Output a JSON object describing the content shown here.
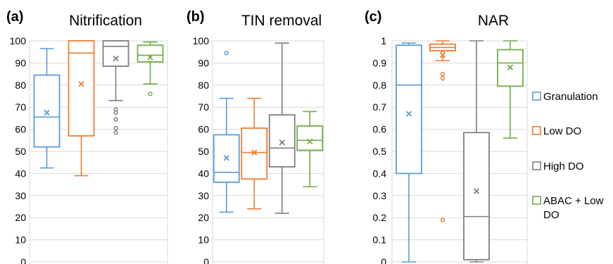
{
  "legend": [
    {
      "label_lines": [
        "Granulation"
      ],
      "color": "#5B9BD5"
    },
    {
      "label_lines": [
        "Low DO"
      ],
      "color": "#ED7D31"
    },
    {
      "label_lines": [
        "High DO"
      ],
      "color": "#7F7F7F"
    },
    {
      "label_lines": [
        "ABAC + Low",
        "DO"
      ],
      "color": "#70AD47"
    }
  ],
  "chart_data": [
    {
      "type": "box",
      "panel": "(a)",
      "title": "Nitrification",
      "ylim": [
        0,
        100
      ],
      "yticks": [
        "0",
        "10",
        "20",
        "30",
        "40",
        "50",
        "60",
        "70",
        "80",
        "90",
        "100"
      ],
      "series": [
        {
          "name": "Granulation",
          "color": "#5B9BD5",
          "min": 42.5,
          "q1": 52,
          "median": 65.5,
          "q3": 84.5,
          "max": 96.5,
          "mean": 67.5,
          "outliers": []
        },
        {
          "name": "Low DO",
          "color": "#ED7D31",
          "min": 39,
          "q1": 57,
          "median": 94.5,
          "q3": 100,
          "max": 100,
          "mean": 80.5,
          "outliers": []
        },
        {
          "name": "High DO",
          "color": "#7F7F7F",
          "min": 73,
          "q1": 88.5,
          "median": 97.5,
          "q3": 100,
          "max": 100,
          "mean": 92,
          "outliers": [
            69,
            67.5,
            64.5,
            60.5,
            58.5
          ]
        },
        {
          "name": "ABAC + Low DO",
          "color": "#70AD47",
          "min": 80.5,
          "q1": 90.5,
          "median": 93.5,
          "q3": 98,
          "max": 99.5,
          "mean": 92.5,
          "outliers": [
            76
          ]
        }
      ]
    },
    {
      "type": "box",
      "panel": "(b)",
      "title": "TIN removal",
      "ylim": [
        0,
        100
      ],
      "yticks": [
        "0",
        "10",
        "20",
        "30",
        "40",
        "50",
        "60",
        "70",
        "80",
        "90",
        "100"
      ],
      "series": [
        {
          "name": "Granulation",
          "color": "#5B9BD5",
          "min": 22.5,
          "q1": 36,
          "median": 40.5,
          "q3": 57.5,
          "max": 74,
          "mean": 47,
          "outliers": [
            94.5
          ]
        },
        {
          "name": "Low DO",
          "color": "#ED7D31",
          "min": 24,
          "q1": 37.5,
          "median": 49.5,
          "q3": 60.5,
          "max": 74,
          "mean": 49.5,
          "outliers": []
        },
        {
          "name": "High DO",
          "color": "#7F7F7F",
          "min": 22,
          "q1": 43,
          "median": 51.5,
          "q3": 66.5,
          "max": 99,
          "mean": 54,
          "outliers": []
        },
        {
          "name": "ABAC + Low DO",
          "color": "#70AD47",
          "min": 34,
          "q1": 50.5,
          "median": 55,
          "q3": 61.5,
          "max": 68,
          "mean": 54.5,
          "outliers": []
        }
      ]
    },
    {
      "type": "box",
      "panel": "(c)",
      "title": "NAR",
      "ylim": [
        0,
        1
      ],
      "yticks": [
        "0",
        "0.1",
        "0.2",
        "0.3",
        "0.4",
        "0.5",
        "0.6",
        "0.7",
        "0.8",
        "0.9",
        "1"
      ],
      "series": [
        {
          "name": "Granulation",
          "color": "#5B9BD5",
          "min": 0,
          "q1": 0.4,
          "median": 0.8,
          "q3": 0.98,
          "max": 0.99,
          "mean": 0.67,
          "outliers": []
        },
        {
          "name": "Low DO",
          "color": "#ED7D31",
          "min": 0.91,
          "q1": 0.955,
          "median": 0.97,
          "q3": 0.985,
          "max": 1.0,
          "mean": 0.935,
          "outliers": [
            0.945,
            0.85,
            0.83,
            0.19
          ]
        },
        {
          "name": "High DO",
          "color": "#7F7F7F",
          "min": 0,
          "q1": 0.01,
          "median": 0.205,
          "q3": 0.585,
          "max": 1.0,
          "mean": 0.32,
          "outliers": []
        },
        {
          "name": "ABAC + Low DO",
          "color": "#70AD47",
          "min": 0.56,
          "q1": 0.795,
          "median": 0.9,
          "q3": 0.96,
          "max": 1.0,
          "mean": 0.88,
          "outliers": []
        }
      ]
    }
  ]
}
